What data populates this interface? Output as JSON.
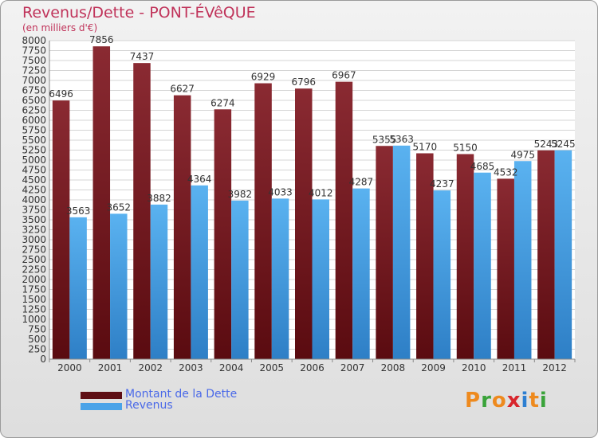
{
  "title": "Revenus/Dette - PONT-ÉVêQUE",
  "subtitle": "(en milliers d'€)",
  "legend": [
    {
      "label": "Montant de la Dette",
      "color": "#7a1c24"
    },
    {
      "label": "Revenus",
      "color": "#4aa3e8"
    }
  ],
  "logo": {
    "text": "Proxiti",
    "colors": [
      "#ee8a1e",
      "#3aa33a",
      "#ee8a1e",
      "#d8262d",
      "#2d7fd1",
      "#ee8a1e",
      "#3aa33a"
    ]
  },
  "chart_data": {
    "type": "bar",
    "title": "Revenus/Dette - PONT-ÉVêQUE",
    "ylabel": "(en milliers d'€)",
    "categories": [
      "2000",
      "2001",
      "2002",
      "2003",
      "2004",
      "2005",
      "2006",
      "2007",
      "2008",
      "2009",
      "2010",
      "2011",
      "2012"
    ],
    "series": [
      {
        "name": "Montant de la Dette",
        "color": "#7a1c24",
        "values": [
          6496,
          7856,
          7437,
          6627,
          6274,
          6929,
          6796,
          6967,
          5355,
          5170,
          5150,
          4532,
          5243
        ]
      },
      {
        "name": "Revenus",
        "color": "#4aa3e8",
        "values": [
          3563,
          3652,
          3882,
          4364,
          3982,
          4033,
          4012,
          4287,
          5363,
          4237,
          4685,
          4975,
          5245
        ]
      }
    ],
    "ylim": [
      0,
      8000
    ],
    "yticks": [
      0,
      250,
      500,
      750,
      1000,
      1250,
      1500,
      1750,
      2000,
      2250,
      2500,
      2750,
      3000,
      3250,
      3500,
      3750,
      4000,
      4250,
      4500,
      4750,
      5000,
      5250,
      5500,
      5750,
      6000,
      6250,
      6500,
      6750,
      7000,
      7250,
      7500,
      7750,
      8000
    ],
    "ytick_labels": [
      "0",
      "250",
      "500",
      "750",
      "1000",
      "1250",
      "1500",
      "1750",
      "2000",
      "2250",
      "2500",
      "2750",
      "3000",
      "3250",
      "3500",
      "3750",
      "4000",
      "4250",
      "4500",
      "4750",
      "5000",
      "5250",
      "5500",
      "5750",
      "6000",
      "6250",
      "6500",
      "6750",
      "7000",
      "7250",
      "7500",
      "7750",
      "8000"
    ],
    "grid": true,
    "legend_position": "bottom-left"
  }
}
